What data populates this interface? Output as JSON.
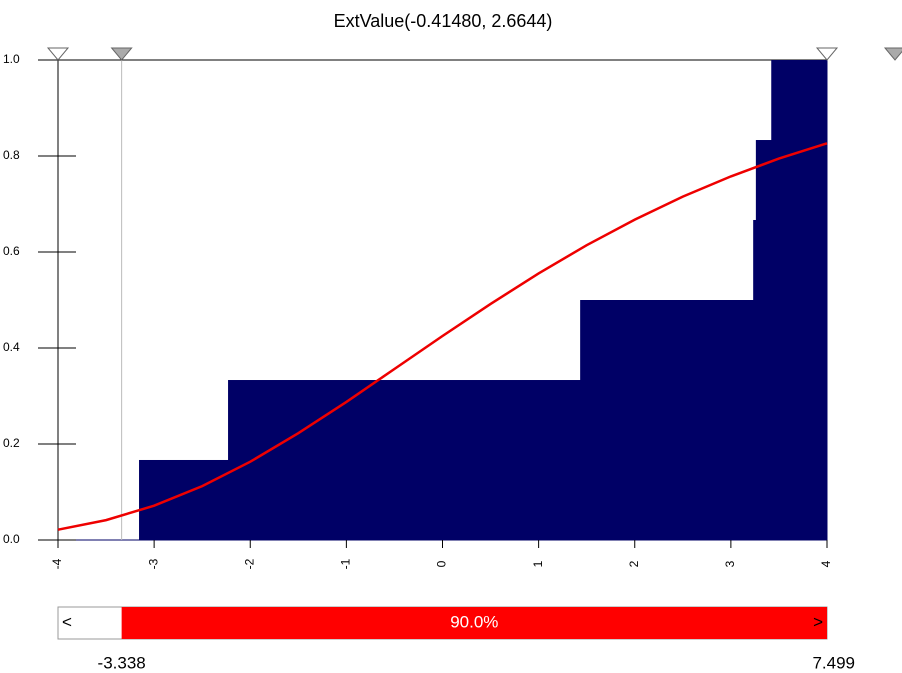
{
  "chart_data": {
    "type": "ecdf",
    "title": "ExtValue(-0.41480, 2.6644)",
    "xlim": [
      -4,
      4
    ],
    "ylim": [
      0,
      1
    ],
    "xticks": [
      -4,
      -3,
      -2,
      -1,
      0,
      1,
      2,
      3,
      4
    ],
    "yticks": [
      {
        "value": 0,
        "label": "0.0"
      },
      {
        "value": 0.2,
        "label": "0.2"
      },
      {
        "value": 0.4,
        "label": "0.4"
      },
      {
        "value": 0.6,
        "label": "0.6"
      },
      {
        "value": 0.8,
        "label": "0.8"
      },
      {
        "value": 1,
        "label": "1.0"
      }
    ],
    "steps": {
      "color": "#000066",
      "x": [
        -3.157,
        -2.231,
        1.432,
        3.232,
        3.26,
        3.42
      ],
      "values": [
        0.1667,
        0.3333,
        0.5,
        0.6667,
        0.8333,
        1.0
      ]
    },
    "curve": {
      "color": "#ee0000",
      "x": [
        -4,
        -3.5,
        -3,
        -2.5,
        -2,
        -1.5,
        -1,
        -0.5,
        0,
        0.5,
        1,
        1.5,
        2,
        2.5,
        3,
        3.5,
        4
      ],
      "values": [
        0.0215,
        0.0415,
        0.0715,
        0.1123,
        0.1632,
        0.2225,
        0.2878,
        0.3562,
        0.425,
        0.4919,
        0.5554,
        0.6142,
        0.6676,
        0.7154,
        0.7576,
        0.7945,
        0.8264
      ]
    },
    "delimiters": [
      -3.338,
      7.499
    ],
    "band": {
      "value": 90,
      "label": "90.0%"
    },
    "left_arrow": "<",
    "right_arrow": ">"
  }
}
